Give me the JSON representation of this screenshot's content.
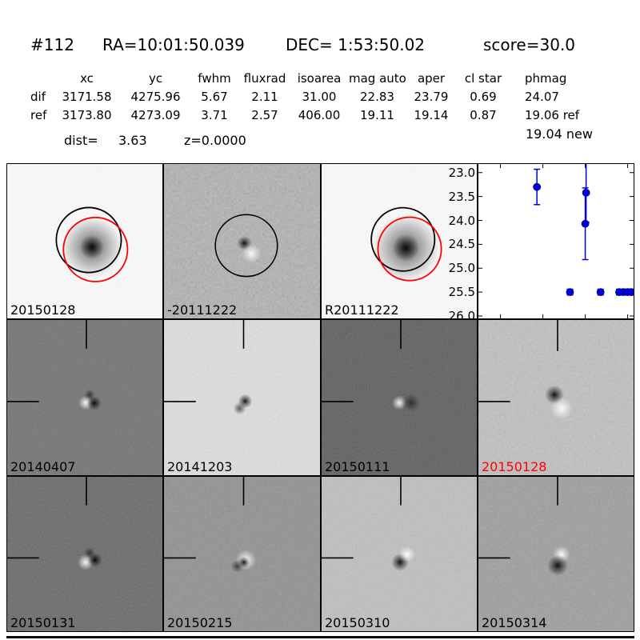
{
  "header": {
    "id": "#112",
    "ra": "RA=10:01:50.039",
    "dec": "DEC= 1:53:50.02",
    "score": "score=30.0"
  },
  "photometry": {
    "headers": [
      "xc",
      "yc",
      "fwhm",
      "fluxrad",
      "isoarea",
      "mag auto",
      "aper",
      "cl star",
      "phmag"
    ],
    "rows": [
      {
        "name": "dif",
        "values": [
          "3171.58",
          "4275.96",
          "5.67",
          "2.11",
          "31.00",
          "22.83",
          "23.79",
          "0.69",
          "24.07"
        ]
      },
      {
        "name": "ref",
        "values": [
          "3173.80",
          "4273.09",
          "3.71",
          "2.57",
          "406.00",
          "19.11",
          "19.14",
          "0.87",
          "19.06 ref"
        ]
      }
    ],
    "phmag_new": "19.04 new",
    "dist_label": "dist=",
    "dist_value": "3.63",
    "z_value": "z=0.0000"
  },
  "panels": {
    "new_image": {
      "label": "20150128"
    },
    "ref_negative": {
      "label": "-20111222"
    },
    "ref_image": {
      "label": "R20111222"
    },
    "highlight_color": "#ff0000",
    "epochs": [
      {
        "label": "20140407",
        "highlight": false
      },
      {
        "label": "20141203",
        "highlight": false
      },
      {
        "label": "20150111",
        "highlight": false
      },
      {
        "label": "20150128",
        "highlight": true
      },
      {
        "label": "20150131",
        "highlight": false
      },
      {
        "label": "20150215",
        "highlight": false
      },
      {
        "label": "20150310",
        "highlight": false
      },
      {
        "label": "20150314",
        "highlight": false
      }
    ]
  },
  "chart_data": {
    "type": "scatter",
    "title": "",
    "xlabel": "",
    "ylabel": "",
    "description": "light curve: magnitude vs epoch (days), y axis inverted",
    "xlim": [
      -126,
      57
    ],
    "ylim": [
      26.05,
      22.82
    ],
    "y_axis_inverted_magnitudes": true,
    "grid": false,
    "xticks": [
      "-100",
      "-50",
      "0",
      "50"
    ],
    "xtick_values": [
      -100,
      -50,
      0,
      50
    ],
    "yticks": [
      "23.0",
      "23.5",
      "24.0",
      "24.5",
      "25.0",
      "25.5",
      "26.0"
    ],
    "ytick_values": [
      23.0,
      23.5,
      24.0,
      24.5,
      25.0,
      25.5,
      26.0
    ],
    "marker_color": "#0000dd",
    "points": [
      {
        "x": -57,
        "mag": 23.3,
        "err": 0.37
      },
      {
        "x": 1,
        "mag": 23.42,
        "err": 0.62
      },
      {
        "x": 0,
        "mag": 24.07,
        "err": 0.75
      },
      {
        "x": -18,
        "mag": 25.5,
        "err": 0.06
      },
      {
        "x": 18,
        "mag": 25.5,
        "err": 0.06
      },
      {
        "x": 40,
        "mag": 25.5,
        "err": 0.06
      },
      {
        "x": 45,
        "mag": 25.5,
        "err": 0.06
      },
      {
        "x": 50,
        "mag": 25.5,
        "err": 0.06
      },
      {
        "x": 54,
        "mag": 25.5,
        "err": 0.06
      }
    ]
  }
}
